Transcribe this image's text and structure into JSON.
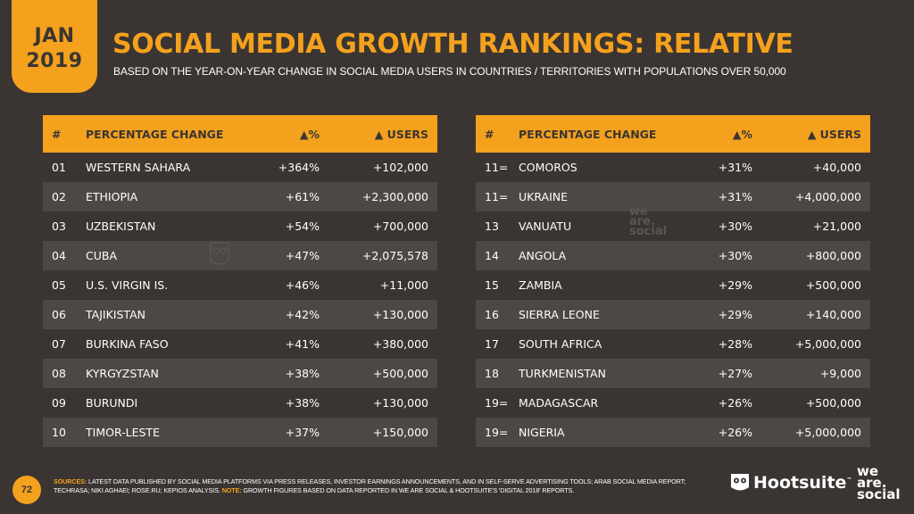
{
  "badge": {
    "month": "JAN",
    "year": "2019"
  },
  "title": "SOCIAL MEDIA GROWTH RANKINGS: RELATIVE",
  "subtitle": "BASED ON THE YEAR-ON-YEAR CHANGE IN SOCIAL MEDIA USERS IN COUNTRIES / TERRITORIES WITH POPULATIONS OVER 50,000",
  "headers": {
    "num": "#",
    "country": "PERCENTAGE CHANGE",
    "pct": "▲%",
    "users": "▲ USERS"
  },
  "left_rows": [
    {
      "num": "01",
      "country": "WESTERN SAHARA",
      "pct": "+364%",
      "users": "+102,000"
    },
    {
      "num": "02",
      "country": "ETHIOPIA",
      "pct": "+61%",
      "users": "+2,300,000"
    },
    {
      "num": "03",
      "country": "UZBEKISTAN",
      "pct": "+54%",
      "users": "+700,000"
    },
    {
      "num": "04",
      "country": "CUBA",
      "pct": "+47%",
      "users": "+2,075,578"
    },
    {
      "num": "05",
      "country": "U.S. VIRGIN IS.",
      "pct": "+46%",
      "users": "+11,000"
    },
    {
      "num": "06",
      "country": "TAJIKISTAN",
      "pct": "+42%",
      "users": "+130,000"
    },
    {
      "num": "07",
      "country": "BURKINA FASO",
      "pct": "+41%",
      "users": "+380,000"
    },
    {
      "num": "08",
      "country": "KYRGYZSTAN",
      "pct": "+38%",
      "users": "+500,000"
    },
    {
      "num": "09",
      "country": "BURUNDI",
      "pct": "+38%",
      "users": "+130,000"
    },
    {
      "num": "10",
      "country": "TIMOR-LESTE",
      "pct": "+37%",
      "users": "+150,000"
    }
  ],
  "right_rows": [
    {
      "num": "11=",
      "country": "COMOROS",
      "pct": "+31%",
      "users": "+40,000"
    },
    {
      "num": "11=",
      "country": "UKRAINE",
      "pct": "+31%",
      "users": "+4,000,000"
    },
    {
      "num": "13",
      "country": "VANUATU",
      "pct": "+30%",
      "users": "+21,000"
    },
    {
      "num": "14",
      "country": "ANGOLA",
      "pct": "+30%",
      "users": "+800,000"
    },
    {
      "num": "15",
      "country": "ZAMBIA",
      "pct": "+29%",
      "users": "+500,000"
    },
    {
      "num": "16",
      "country": "SIERRA LEONE",
      "pct": "+29%",
      "users": "+140,000"
    },
    {
      "num": "17",
      "country": "SOUTH AFRICA",
      "pct": "+28%",
      "users": "+5,000,000"
    },
    {
      "num": "18",
      "country": "TURKMENISTAN",
      "pct": "+27%",
      "users": "+9,000"
    },
    {
      "num": "19=",
      "country": "MADAGASCAR",
      "pct": "+26%",
      "users": "+500,000"
    },
    {
      "num": "19=",
      "country": "NIGERIA",
      "pct": "+26%",
      "users": "+5,000,000"
    }
  ],
  "watermark": [
    "we",
    "are.",
    "social"
  ],
  "footer": {
    "page_number": "72",
    "sources_label": "SOURCES:",
    "sources_text": "LATEST DATA PUBLISHED BY SOCIAL MEDIA PLATFORMS VIA PRESS RELEASES, INVESTOR EARNINGS ANNOUNCEMENTS, AND IN SELF-SERVE ADVERTISING TOOLS; ARAB SOCIAL MEDIA REPORT; TECHRASA; NIKI AGHAEI; ROSE.RU; KEPIOS ANALYSIS.",
    "note_label": "NOTE:",
    "note_text": "GROWTH FIGURES BASED ON DATA REPORTED IN WE ARE SOCIAL & HOOTSUITE'S 'DIGITAL 2018' REPORTS."
  },
  "logos": {
    "hootsuite": "Hootsuite",
    "hootsuite_tm": "™",
    "was": [
      "we",
      "are.",
      "social"
    ]
  },
  "colors": {
    "accent": "#f4a11d",
    "background": "#3a3532",
    "band": "#4d4845"
  }
}
